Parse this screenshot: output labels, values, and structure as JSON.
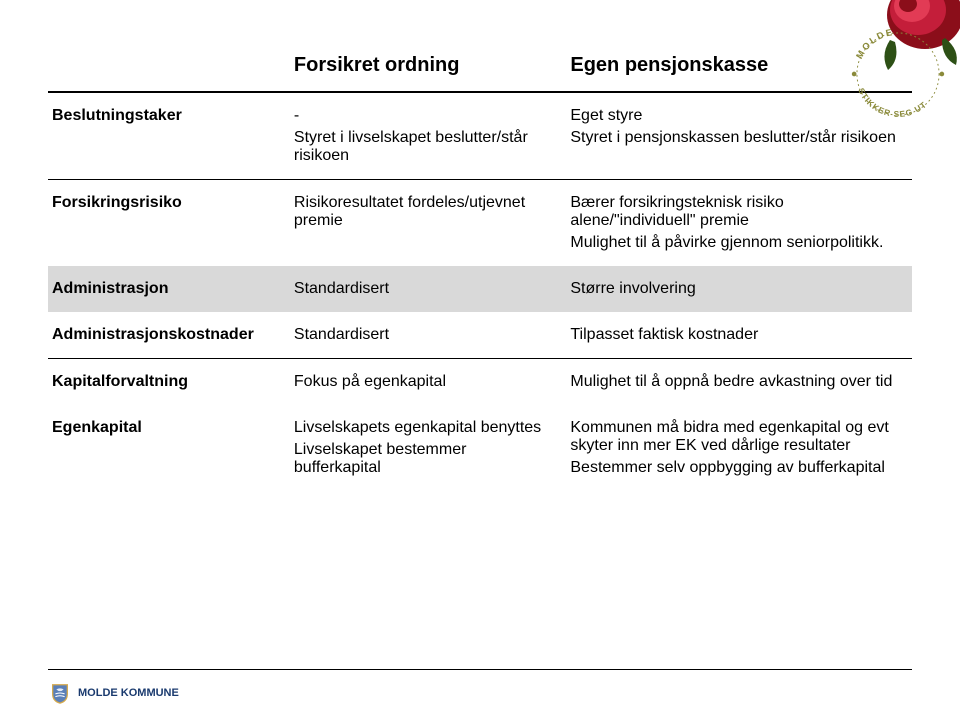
{
  "header": {
    "col_label": "",
    "col_a": "Forsikret ordning",
    "col_b": "Egen pensjonskasse"
  },
  "rows": [
    {
      "label": "Beslutningstaker",
      "a_lines": [
        "-",
        "Styret i livselskapet beslutter/står risikoen"
      ],
      "b_lines": [
        "Eget styre",
        "Styret i pensjonskassen beslutter/står risikoen"
      ],
      "shaded": false,
      "line": true
    },
    {
      "label": "Forsikringsrisiko",
      "a_lines": [
        "Risikoresultatet fordeles/utjevnet premie"
      ],
      "b_lines": [
        "Bærer forsikringsteknisk risiko alene/\"individuell\" premie",
        "Mulighet til å påvirke gjennom seniorpolitikk."
      ],
      "shaded": false,
      "line": false
    },
    {
      "label": "Administrasjon",
      "a_lines": [
        "Standardisert"
      ],
      "b_lines": [
        "Større involvering"
      ],
      "shaded": true,
      "line": false
    },
    {
      "label": "Administrasjonskostnader",
      "a_lines": [
        "Standardisert"
      ],
      "b_lines": [
        "Tilpasset faktisk kostnader"
      ],
      "shaded": false,
      "line": true
    },
    {
      "label": "Kapitalforvaltning",
      "a_lines": [
        "Fokus på egenkapital"
      ],
      "b_lines": [
        "Mulighet til å oppnå bedre avkastning over tid"
      ],
      "shaded": false,
      "line": false
    },
    {
      "label": "Egenkapital",
      "a_lines": [
        "Livselskapets egenkapital benyttes",
        "Livselskapet bestemmer bufferkapital"
      ],
      "b_lines": [
        "Kommunen må bidra med egenkapital og evt skyter inn mer EK ved dårlige resultater",
        "Bestemmer selv oppbygging av bufferkapital"
      ],
      "shaded": false,
      "line": false
    }
  ],
  "footer": {
    "brand": "MOLDE KOMMUNE"
  },
  "badge": {
    "text_top": "MOLDE",
    "text_bottom": "STIKKER SEG UT",
    "ring_color": "#8a8a3a",
    "text_color": "#8a8a3a"
  },
  "colors": {
    "background": "#ffffff",
    "text": "#000000",
    "shaded_row": "#d9d9d9",
    "rose_dark": "#8b0e1a",
    "rose_mid": "#c41e3a",
    "rose_light": "#e23b55",
    "leaf": "#2d5016",
    "footer_brand": "#1a3a6e",
    "shield_blue": "#5a7fb8",
    "shield_border": "#d4a84b"
  }
}
